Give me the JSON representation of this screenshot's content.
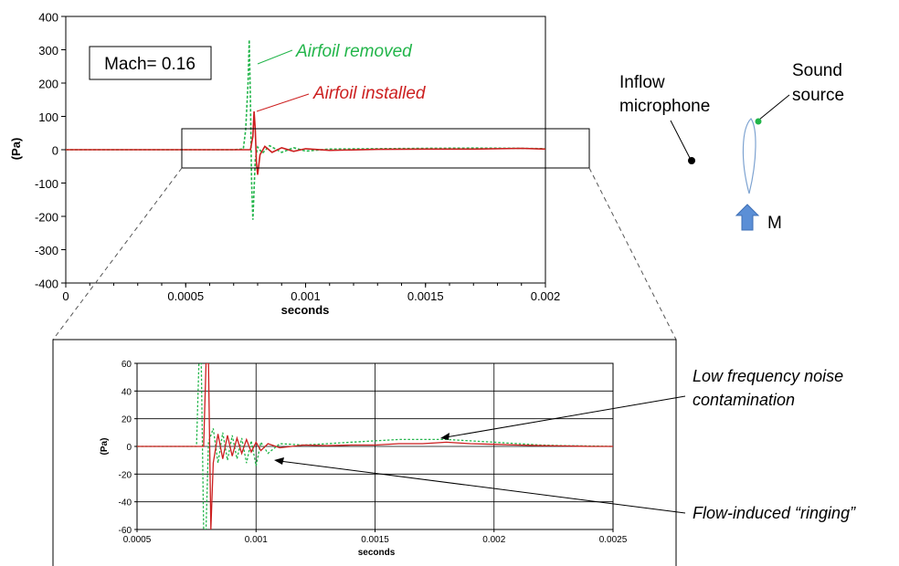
{
  "colors": {
    "installed": "#cc1f1f",
    "removed": "#22b54a",
    "arrow": "#5b8fd6",
    "source_dot": "#22b54a",
    "mic_dot": "#000000",
    "airfoil": "#7ea3d1"
  },
  "annotations": {
    "mach_box": "Mach= 0.16",
    "inflow_line1": "Inflow",
    "inflow_line2": "microphone",
    "source_line1": "Sound",
    "source_line2": "source",
    "flow_label": "M",
    "low_freq_line1": "Low frequency noise",
    "low_freq_line2": "contamination",
    "ringing": "Flow-induced “ringing”"
  },
  "chart_data": [
    {
      "type": "line",
      "xlabel": "seconds",
      "ylabel": "(Pa)",
      "xlim": [
        0,
        0.002
      ],
      "ylim": [
        -400,
        400
      ],
      "xticks": [
        0,
        0.0005,
        0.001,
        0.0015,
        0.002
      ],
      "xtick_labels": [
        "0",
        "0.0005",
        "0.001",
        "0.0015",
        "0.002"
      ],
      "yticks": [
        -400,
        -300,
        -200,
        -100,
        0,
        100,
        200,
        300,
        400
      ],
      "ytick_labels": [
        "-400",
        "-300",
        "-200",
        "-100",
        "0",
        "100",
        "200",
        "300",
        "400"
      ],
      "grid": false,
      "series": [
        {
          "name": "Airfoil removed",
          "style": "dashed",
          "x": [
            0,
            0.0007,
            0.00074,
            0.00075,
            0.00076,
            0.000765,
            0.00077,
            0.000775,
            0.00078,
            0.000785,
            0.00079,
            0.0008,
            0.00082,
            0.00085,
            0.0009,
            0.00095,
            0.001,
            0.0011,
            0.0013,
            0.0015,
            0.0017,
            0.0019,
            0.002
          ],
          "y": [
            0,
            0,
            2,
            60,
            200,
            330,
            150,
            -100,
            -210,
            -120,
            -30,
            8,
            -10,
            12,
            -8,
            6,
            -4,
            2,
            3,
            4,
            5,
            4,
            3
          ]
        },
        {
          "name": "Airfoil installed",
          "style": "solid",
          "x": [
            0,
            0.00075,
            0.00077,
            0.00078,
            0.000785,
            0.00079,
            0.000795,
            0.0008,
            0.00081,
            0.00083,
            0.00086,
            0.0009,
            0.00095,
            0.001,
            0.0011,
            0.0013,
            0.0015,
            0.0017,
            0.0019,
            0.002
          ],
          "y": [
            0,
            0,
            0,
            40,
            115,
            60,
            -40,
            -75,
            -15,
            10,
            -8,
            6,
            -5,
            3,
            -2,
            1,
            2,
            2,
            4,
            2
          ]
        }
      ]
    },
    {
      "type": "line",
      "xlabel": "seconds",
      "ylabel": "(Pa)",
      "xlim": [
        0.0005,
        0.0025
      ],
      "ylim": [
        -60,
        60
      ],
      "xticks": [
        0.0005,
        0.001,
        0.0015,
        0.002,
        0.0025
      ],
      "xtick_labels": [
        "0.0005",
        "0.001",
        "0.0015",
        "0.002",
        "0.0025"
      ],
      "yticks": [
        -60,
        -40,
        -20,
        0,
        20,
        40,
        60
      ],
      "ytick_labels": [
        "-60",
        "-40",
        "-20",
        "0",
        "20",
        "40",
        "60"
      ],
      "grid": true,
      "series": [
        {
          "name": "Airfoil removed",
          "style": "dashed",
          "x": [
            0.0005,
            0.00075,
            0.00076,
            0.00077,
            0.00078,
            0.00079,
            0.0008,
            0.00082,
            0.00084,
            0.00086,
            0.00088,
            0.0009,
            0.00092,
            0.00094,
            0.00096,
            0.00098,
            0.001,
            0.00102,
            0.00105,
            0.0011,
            0.0012,
            0.0013,
            0.0014,
            0.0015,
            0.0016,
            0.0017,
            0.0018,
            0.0019,
            0.002,
            0.0021,
            0.0022,
            0.0023,
            0.0024,
            0.0025
          ],
          "y": [
            0,
            0,
            60,
            60,
            -60,
            -60,
            3,
            13,
            -12,
            10,
            -10,
            8,
            -9,
            6,
            -12,
            4,
            -14,
            3,
            -5,
            2,
            1,
            2,
            3,
            4,
            5,
            5,
            5,
            4,
            3,
            2,
            1,
            0.5,
            0.3,
            0
          ]
        },
        {
          "name": "Airfoil installed",
          "style": "solid",
          "x": [
            0.0005,
            0.00078,
            0.00079,
            0.0008,
            0.00081,
            0.00082,
            0.00084,
            0.00086,
            0.00088,
            0.0009,
            0.00092,
            0.00094,
            0.00096,
            0.00098,
            0.001,
            0.00102,
            0.00105,
            0.0011,
            0.0012,
            0.0013,
            0.0014,
            0.0015,
            0.0016,
            0.0017,
            0.0018,
            0.0019,
            0.002,
            0.0021,
            0.0022,
            0.0023,
            0.0024,
            0.0025
          ],
          "y": [
            0,
            0,
            60,
            60,
            -60,
            -12,
            9,
            -9,
            8,
            -7,
            6,
            -5,
            5,
            -4,
            3,
            -3,
            2,
            -1,
            1,
            0.5,
            1,
            1,
            2,
            2,
            3,
            2,
            1.5,
            1,
            0.5,
            0.3,
            0,
            0
          ]
        }
      ]
    }
  ]
}
